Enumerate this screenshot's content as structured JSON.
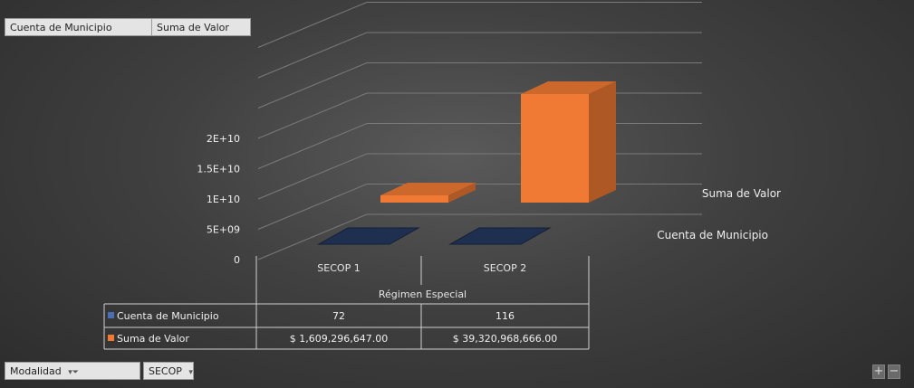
{
  "pivot": {
    "value_fields": [
      "Cuenta de Municipio",
      "Suma de Valor"
    ],
    "filter_field": "Modalidad",
    "filter_value": "SECOP",
    "zoom_in": "+",
    "zoom_out": "−"
  },
  "colors": {
    "cuenta": "#1f2f4f",
    "suma": "#f07a33"
  },
  "chart_data": {
    "type": "bar",
    "subtype": "3d-column",
    "categories": [
      "SECOP 1",
      "SECOP 2"
    ],
    "category_group": "Régimen Especial",
    "y_ticks": [
      "0",
      "5E+09",
      "1E+10",
      "1.5E+10",
      "2E+10"
    ],
    "ylim": [
      0,
      40000000000
    ],
    "series": [
      {
        "name": "Cuenta de Municipio",
        "values": [
          72,
          116
        ],
        "display": [
          "72",
          "116"
        ]
      },
      {
        "name": "Suma de Valor",
        "values": [
          1609296647,
          39320968666
        ],
        "display": [
          "$ 1,609,296,647.00",
          "$ 39,320,968,666.00"
        ]
      }
    ],
    "legend": "data-table",
    "grid": true
  }
}
